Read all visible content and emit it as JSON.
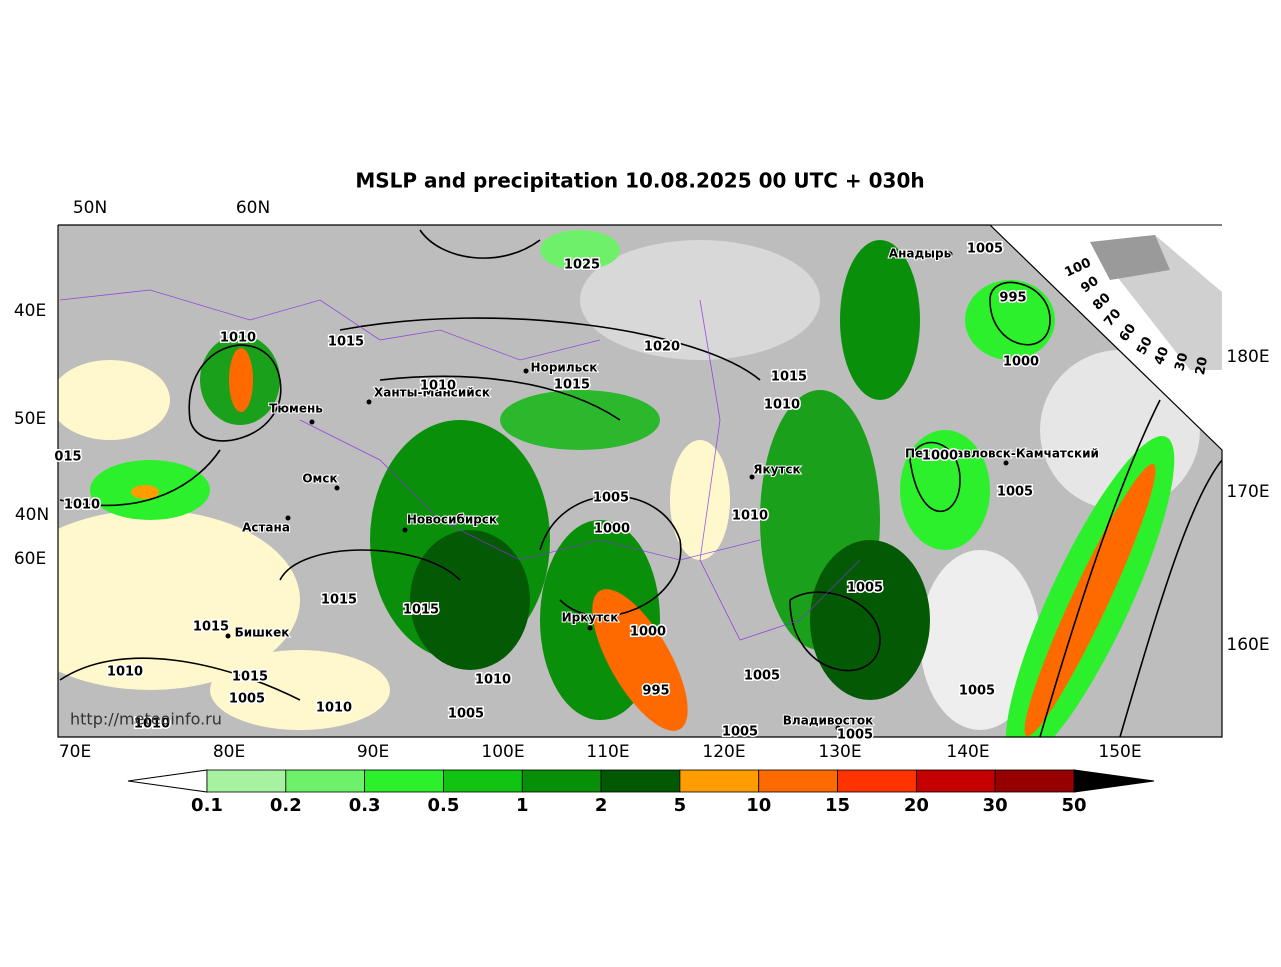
{
  "title": "MSLP and precipitation 10.08.2025 00 UTC + 030h",
  "grid_labels": {
    "top": [
      "50N",
      "60N"
    ],
    "left": [
      "40E",
      "50E",
      "40N",
      "60E"
    ],
    "bottom": [
      "70E",
      "80E",
      "90E",
      "100E",
      "110E",
      "120E",
      "130E",
      "140E",
      "150E"
    ],
    "right": [
      "180E",
      "170E",
      "160E"
    ]
  },
  "cities": [
    "Анадырь",
    "Норильск",
    "Ханты-Мансийск",
    "Тюмень",
    "Омск",
    "Астана",
    "Новосибирск",
    "Якутск",
    "Петропавловск-Камчатский",
    "Иркутск",
    "Бишкек",
    "Владивосток"
  ],
  "pressure_labels": [
    1025,
    1020,
    1015,
    1010,
    1010,
    1015,
    1015,
    1010,
    1005,
    995,
    1000,
    1000,
    1005,
    "015",
    1010,
    1005,
    1000,
    1010,
    1005,
    1015,
    1015,
    1015,
    1000,
    1010,
    1015,
    1005,
    1010,
    1005,
    1010,
    995,
    1005,
    1005,
    1005,
    1005,
    1010
  ],
  "wedge_labels": [
    100,
    90,
    80,
    70,
    60,
    50,
    40,
    30,
    20
  ],
  "watermark": "http://meteoinfo.ru",
  "colorbar": {
    "ticks": [
      0.1,
      0.2,
      0.3,
      0.5,
      1,
      2,
      5,
      10,
      15,
      20,
      30,
      50
    ],
    "colors": [
      "#a6f2a0",
      "#6ef06a",
      "#2cf02c",
      "#12c412",
      "#088f08",
      "#035803",
      "#ff9d00",
      "#ff6a00",
      "#ff3300",
      "#c40000",
      "#960000"
    ],
    "under_color": "#ffffff",
    "over_color": "#000000"
  }
}
